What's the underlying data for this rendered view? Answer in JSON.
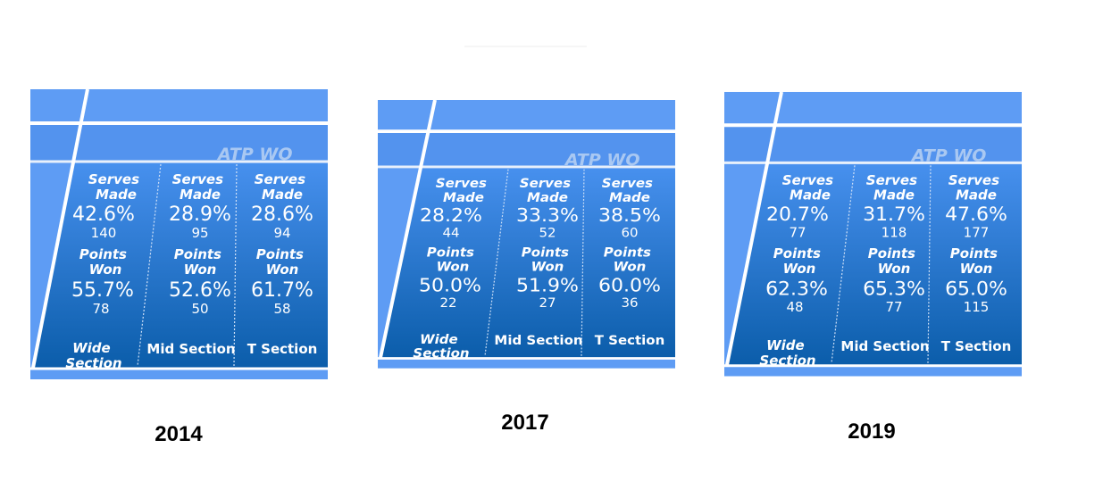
{
  "panels": [
    {
      "watermark": "ATP WO",
      "year": "2014",
      "zones": [
        {
          "serves_label": "Serves Made",
          "serves_pct": "42.6%",
          "serves_count": "140",
          "points_label": "Points Won",
          "points_pct": "55.7%",
          "points_count": "78",
          "name": "Wide Section"
        },
        {
          "serves_label": "Serves Made",
          "serves_pct": "28.9%",
          "serves_count": "95",
          "points_label": "Points Won",
          "points_pct": "52.6%",
          "points_count": "50",
          "name": "Mid Section"
        },
        {
          "serves_label": "Serves Made",
          "serves_pct": "28.6%",
          "serves_count": "94",
          "points_label": "Points Won",
          "points_pct": "61.7%",
          "points_count": "58",
          "name": "T Section"
        }
      ]
    },
    {
      "watermark": "ATP WO",
      "year": "2017",
      "zones": [
        {
          "serves_label": "Serves Made",
          "serves_pct": "28.2%",
          "serves_count": "44",
          "points_label": "Points Won",
          "points_pct": "50.0%",
          "points_count": "22",
          "name": "Wide Section"
        },
        {
          "serves_label": "Serves Made",
          "serves_pct": "33.3%",
          "serves_count": "52",
          "points_label": "Points Won",
          "points_pct": "51.9%",
          "points_count": "27",
          "name": "Mid Section"
        },
        {
          "serves_label": "Serves Made",
          "serves_pct": "38.5%",
          "serves_count": "60",
          "points_label": "Points Won",
          "points_pct": "60.0%",
          "points_count": "36",
          "name": "T Section"
        }
      ]
    },
    {
      "watermark": "ATP WO",
      "year": "2019",
      "zones": [
        {
          "serves_label": "Serves Made",
          "serves_pct": "20.7%",
          "serves_count": "77",
          "points_label": "Points Won",
          "points_pct": "62.3%",
          "points_count": "48",
          "name": "Wide Section"
        },
        {
          "serves_label": "Serves Made",
          "serves_pct": "31.7%",
          "serves_count": "118",
          "points_label": "Points Won",
          "points_pct": "65.3%",
          "points_count": "77",
          "name": "Mid Section"
        },
        {
          "serves_label": "Serves Made",
          "serves_pct": "47.6%",
          "serves_count": "177",
          "points_label": "Points Won",
          "points_pct": "65.0%",
          "points_count": "115",
          "name": "T Section"
        }
      ]
    }
  ]
}
